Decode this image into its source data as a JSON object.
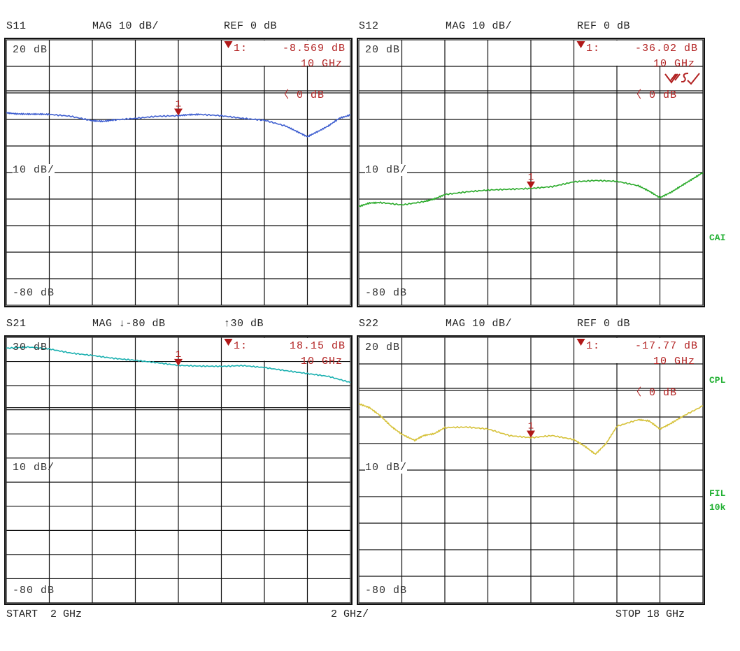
{
  "chart_data": [
    {
      "type": "line",
      "title": "S11",
      "format": "MAG 10 dB/",
      "ref": "REF 0 dB",
      "ylabel_top": "20 dB",
      "ylabel_mid": "10 dB/",
      "ylabel_bottom": "-80 dB",
      "ylim": [
        -80,
        20
      ],
      "ref_level_db": 0,
      "ref_marker": "0 dB",
      "xlim": [
        2,
        18
      ],
      "x_unit": "GHz",
      "color": "#3f5fd0",
      "marker": {
        "id": "1",
        "label": "1:",
        "value": "-8.569 dB",
        "freq": "10 GHz",
        "x": 10,
        "y": -8.569
      },
      "x": [
        2,
        2.5,
        3,
        3.5,
        4,
        5,
        6,
        6.5,
        7,
        8,
        9,
        10,
        10.5,
        11,
        12,
        13,
        14,
        15,
        15.5,
        16,
        16.5,
        17,
        17.5,
        18
      ],
      "y": [
        -7.5,
        -7.9,
        -8.0,
        -8.0,
        -8.1,
        -8.8,
        -10.5,
        -10.7,
        -10.2,
        -9.6,
        -8.8,
        -8.6,
        -8.2,
        -8.1,
        -8.6,
        -9.6,
        -10.3,
        -12.5,
        -14.5,
        -16.5,
        -14.5,
        -12.3,
        -9.5,
        -8.3
      ]
    },
    {
      "type": "line",
      "title": "S12",
      "format": "MAG 10 dB/",
      "ref": "REF 0 dB",
      "ylabel_top": "20 dB",
      "ylabel_mid": "10 dB/",
      "ylabel_bottom": "-80 dB",
      "ylim": [
        -80,
        20
      ],
      "ref_level_db": 0,
      "ref_marker": "0 dB",
      "xlim": [
        2,
        18
      ],
      "x_unit": "GHz",
      "color": "#2aaa2a",
      "marker": {
        "id": "1",
        "label": "1:",
        "value": "-36.02 dB",
        "freq": "10 GHz",
        "x": 10,
        "y": -36.02
      },
      "x": [
        2,
        2.5,
        3,
        4,
        5,
        5.5,
        6,
        7,
        8,
        9,
        10,
        11,
        12,
        13,
        14,
        15,
        15.5,
        16,
        16.5,
        17,
        17.5,
        18
      ],
      "y": [
        -42.8,
        -41.5,
        -41.3,
        -42.2,
        -41.0,
        -40.0,
        -38.3,
        -37.3,
        -36.6,
        -36.3,
        -36.0,
        -35.3,
        -33.5,
        -33.0,
        -33.3,
        -35.0,
        -37.0,
        -39.5,
        -37.5,
        -35.0,
        -32.5,
        -30.0
      ]
    },
    {
      "type": "line",
      "title": "S21",
      "format": "MAG ↓-80 dB",
      "ref": "↑30 dB",
      "ylabel_top": "30 dB",
      "ylabel_mid": "10 dB/",
      "ylabel_bottom": "-80 dB",
      "ylim": [
        -80,
        30
      ],
      "ref_level_db": 0,
      "xlim": [
        2,
        18
      ],
      "x_unit": "GHz",
      "color": "#1ab0b0",
      "marker": {
        "id": "1",
        "label": "1:",
        "value": "18.15 dB",
        "freq": "10 GHz",
        "x": 10,
        "y": 18.15
      },
      "x": [
        2,
        3,
        4,
        5,
        6,
        7,
        8,
        9,
        10,
        11,
        12,
        13,
        14,
        15,
        16,
        17,
        18
      ],
      "y": [
        25.5,
        26.0,
        25.2,
        23.5,
        22.5,
        21.3,
        20.5,
        19.5,
        18.4,
        18.1,
        18.0,
        18.3,
        17.5,
        16.2,
        15.0,
        13.8,
        11.3
      ]
    },
    {
      "type": "line",
      "title": "S22",
      "format": "MAG 10 dB/",
      "ref": "REF 0 dB",
      "ylabel_top": "20 dB",
      "ylabel_mid": "10 dB/",
      "ylabel_bottom": "-80 dB",
      "ylim": [
        -80,
        20
      ],
      "ref_level_db": 0,
      "ref_marker": "0 dB",
      "xlim": [
        2,
        18
      ],
      "x_unit": "GHz",
      "color": "#d6c23a",
      "marker": {
        "id": "1",
        "label": "1:",
        "value": "-17.77 dB",
        "freq": "10 GHz",
        "x": 10,
        "y": -17.77
      },
      "x": [
        2,
        2.5,
        3,
        3.5,
        4,
        4.6,
        5,
        5.5,
        6,
        7,
        8,
        9,
        10,
        11,
        12,
        12.5,
        13,
        13.5,
        14,
        15,
        15.5,
        16,
        16.5,
        17,
        18
      ],
      "y": [
        -5.0,
        -6.5,
        -9.5,
        -13.5,
        -16.5,
        -18.8,
        -17.0,
        -16.3,
        -14.0,
        -13.8,
        -14.5,
        -17.0,
        -17.8,
        -17.0,
        -18.5,
        -21.0,
        -24.0,
        -20.0,
        -13.5,
        -11.0,
        -11.5,
        -14.5,
        -12.5,
        -10.0,
        -5.8
      ]
    }
  ],
  "footer": {
    "start": "START  2 GHz",
    "span": "2 GHz/",
    "stop": "STOP 18 GHz"
  },
  "side_labels": {
    "cal": "CAI",
    "cpl": "CPL",
    "fil_1": "FIL",
    "fil_2": "10k"
  },
  "marker_color": "#b01818",
  "ref_arrow": "〈"
}
